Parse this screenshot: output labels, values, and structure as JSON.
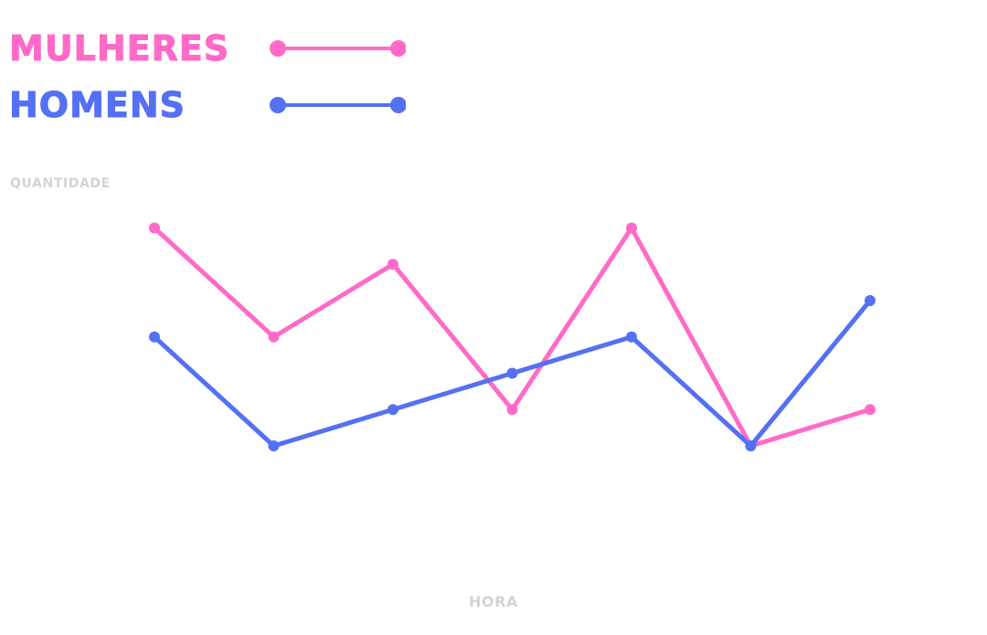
{
  "chart_data": {
    "type": "line",
    "xlabel": "HORA",
    "ylabel": "QUANTIDADE",
    "x": [
      1,
      2,
      3,
      4,
      5,
      6,
      7
    ],
    "ylim": [
      0,
      12
    ],
    "grid": false,
    "legend_position": "top-left",
    "series": [
      {
        "name": "MULHERES",
        "color": "#ff6ac8",
        "values": [
          10,
          7,
          9,
          5,
          10,
          4,
          5
        ]
      },
      {
        "name": "HOMENS",
        "color": "#5470f4",
        "values": [
          7,
          4,
          5,
          6,
          7,
          4,
          8
        ]
      }
    ]
  }
}
